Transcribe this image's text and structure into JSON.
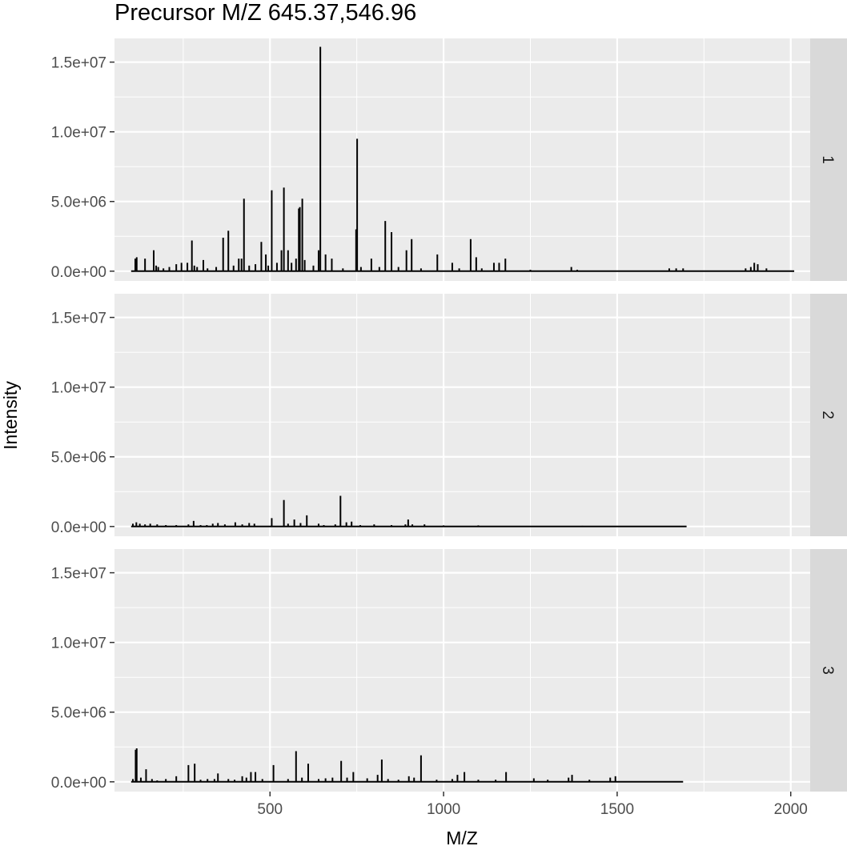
{
  "chart_data": {
    "type": "line",
    "title": "Precursor M/Z 645.37,546.96",
    "xlabel": "M/Z",
    "ylabel": "Intensity",
    "xlim": [
      52,
      2056
    ],
    "ylim": [
      -700000,
      16700000
    ],
    "x_ticks": [
      {
        "value": 500,
        "label": "500"
      },
      {
        "value": 1000,
        "label": "1000"
      },
      {
        "value": 1500,
        "label": "1500"
      },
      {
        "value": 2000,
        "label": "2000"
      }
    ],
    "y_ticks": [
      {
        "value": 0,
        "label": "0.0e+00"
      },
      {
        "value": 5000000,
        "label": "5.0e+06"
      },
      {
        "value": 10000000,
        "label": "1.0e+07"
      },
      {
        "value": 15000000,
        "label": "1.5e+07"
      }
    ],
    "grid": true,
    "facets": [
      {
        "strip": "1",
        "x_range": [
          100,
          2010
        ],
        "peaks": [
          [
            112,
            900000
          ],
          [
            116,
            1000000
          ],
          [
            140,
            900000
          ],
          [
            165,
            1500000
          ],
          [
            172,
            400000
          ],
          [
            178,
            300000
          ],
          [
            193,
            200000
          ],
          [
            210,
            300000
          ],
          [
            230,
            500000
          ],
          [
            245,
            600000
          ],
          [
            262,
            600000
          ],
          [
            275,
            2200000
          ],
          [
            282,
            400000
          ],
          [
            290,
            300000
          ],
          [
            308,
            800000
          ],
          [
            320,
            200000
          ],
          [
            345,
            300000
          ],
          [
            365,
            2400000
          ],
          [
            380,
            2900000
          ],
          [
            395,
            400000
          ],
          [
            410,
            900000
          ],
          [
            418,
            900000
          ],
          [
            425,
            5200000
          ],
          [
            440,
            400000
          ],
          [
            458,
            500000
          ],
          [
            475,
            2100000
          ],
          [
            488,
            1200000
          ],
          [
            495,
            400000
          ],
          [
            505,
            5800000
          ],
          [
            520,
            600000
          ],
          [
            533,
            1500000
          ],
          [
            540,
            6000000
          ],
          [
            552,
            1500000
          ],
          [
            562,
            600000
          ],
          [
            575,
            900000
          ],
          [
            583,
            4500000
          ],
          [
            586,
            4600000
          ],
          [
            593,
            5200000
          ],
          [
            600,
            800000
          ],
          [
            625,
            400000
          ],
          [
            640,
            1500000
          ],
          [
            645,
            16100000
          ],
          [
            660,
            1200000
          ],
          [
            678,
            900000
          ],
          [
            710,
            200000
          ],
          [
            748,
            3000000
          ],
          [
            751,
            9500000
          ],
          [
            762,
            300000
          ],
          [
            792,
            900000
          ],
          [
            815,
            300000
          ],
          [
            832,
            3600000
          ],
          [
            850,
            2800000
          ],
          [
            870,
            300000
          ],
          [
            893,
            1500000
          ],
          [
            908,
            2300000
          ],
          [
            935,
            200000
          ],
          [
            982,
            1200000
          ],
          [
            1025,
            600000
          ],
          [
            1045,
            200000
          ],
          [
            1078,
            2300000
          ],
          [
            1094,
            1000000
          ],
          [
            1110,
            200000
          ],
          [
            1145,
            600000
          ],
          [
            1160,
            600000
          ],
          [
            1178,
            900000
          ],
          [
            1250,
            100000
          ],
          [
            1368,
            300000
          ],
          [
            1385,
            100000
          ],
          [
            1650,
            200000
          ],
          [
            1670,
            200000
          ],
          [
            1690,
            200000
          ],
          [
            1870,
            200000
          ],
          [
            1885,
            300000
          ],
          [
            1895,
            600000
          ],
          [
            1905,
            500000
          ],
          [
            1930,
            200000
          ]
        ]
      },
      {
        "strip": "2",
        "x_range": [
          100,
          1700
        ],
        "peaks": [
          [
            105,
            200000
          ],
          [
            115,
            300000
          ],
          [
            125,
            200000
          ],
          [
            140,
            150000
          ],
          [
            155,
            200000
          ],
          [
            175,
            150000
          ],
          [
            200,
            100000
          ],
          [
            230,
            100000
          ],
          [
            265,
            150000
          ],
          [
            280,
            400000
          ],
          [
            300,
            100000
          ],
          [
            318,
            100000
          ],
          [
            335,
            200000
          ],
          [
            350,
            250000
          ],
          [
            370,
            150000
          ],
          [
            400,
            300000
          ],
          [
            420,
            150000
          ],
          [
            440,
            250000
          ],
          [
            455,
            200000
          ],
          [
            505,
            600000
          ],
          [
            540,
            1900000
          ],
          [
            552,
            200000
          ],
          [
            570,
            500000
          ],
          [
            588,
            250000
          ],
          [
            606,
            800000
          ],
          [
            640,
            200000
          ],
          [
            655,
            100000
          ],
          [
            688,
            150000
          ],
          [
            703,
            2200000
          ],
          [
            720,
            300000
          ],
          [
            735,
            350000
          ],
          [
            760,
            100000
          ],
          [
            800,
            150000
          ],
          [
            850,
            100000
          ],
          [
            890,
            150000
          ],
          [
            898,
            500000
          ],
          [
            910,
            150000
          ],
          [
            945,
            150000
          ],
          [
            1000,
            80000
          ],
          [
            1100,
            80000
          ],
          [
            1400,
            50000
          ]
        ]
      },
      {
        "strip": "3",
        "x_range": [
          100,
          1690
        ],
        "peaks": [
          [
            105,
            200000
          ],
          [
            113,
            2300000
          ],
          [
            116,
            2400000
          ],
          [
            128,
            300000
          ],
          [
            143,
            900000
          ],
          [
            160,
            200000
          ],
          [
            175,
            100000
          ],
          [
            200,
            200000
          ],
          [
            230,
            400000
          ],
          [
            265,
            1200000
          ],
          [
            283,
            1300000
          ],
          [
            300,
            150000
          ],
          [
            320,
            200000
          ],
          [
            340,
            200000
          ],
          [
            350,
            600000
          ],
          [
            380,
            200000
          ],
          [
            398,
            150000
          ],
          [
            420,
            400000
          ],
          [
            432,
            300000
          ],
          [
            445,
            700000
          ],
          [
            458,
            700000
          ],
          [
            478,
            200000
          ],
          [
            510,
            1200000
          ],
          [
            552,
            200000
          ],
          [
            575,
            2200000
          ],
          [
            592,
            300000
          ],
          [
            610,
            1300000
          ],
          [
            640,
            200000
          ],
          [
            660,
            250000
          ],
          [
            680,
            300000
          ],
          [
            705,
            1500000
          ],
          [
            722,
            300000
          ],
          [
            740,
            700000
          ],
          [
            780,
            250000
          ],
          [
            810,
            500000
          ],
          [
            822,
            1600000
          ],
          [
            840,
            200000
          ],
          [
            870,
            150000
          ],
          [
            900,
            400000
          ],
          [
            915,
            300000
          ],
          [
            935,
            1900000
          ],
          [
            980,
            150000
          ],
          [
            1025,
            200000
          ],
          [
            1040,
            500000
          ],
          [
            1060,
            700000
          ],
          [
            1100,
            150000
          ],
          [
            1150,
            150000
          ],
          [
            1180,
            700000
          ],
          [
            1260,
            250000
          ],
          [
            1300,
            150000
          ],
          [
            1360,
            300000
          ],
          [
            1370,
            500000
          ],
          [
            1420,
            150000
          ],
          [
            1480,
            300000
          ],
          [
            1495,
            400000
          ]
        ]
      }
    ]
  }
}
